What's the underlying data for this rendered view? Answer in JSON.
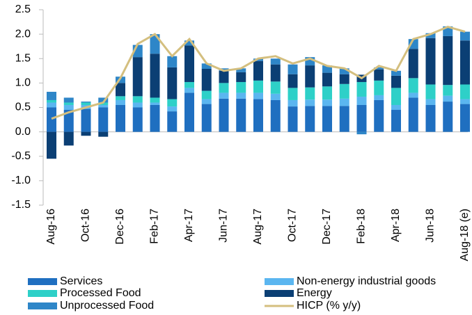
{
  "chart_data": {
    "type": "bar",
    "stacked": true,
    "categories": [
      "Aug-16",
      null,
      "Oct-16",
      null,
      "Dec-16",
      null,
      "Feb-17",
      null,
      "Apr-17",
      null,
      "Jun-17",
      null,
      "Aug-17",
      null,
      "Oct-17",
      null,
      "Dec-17",
      null,
      "Feb-18",
      null,
      "Apr-18",
      null,
      "Jun-18",
      null,
      "Aug-18 (e)"
    ],
    "series": [
      {
        "name": "Services",
        "color": "#1f6fc0",
        "values": [
          0.5,
          0.45,
          0.47,
          0.5,
          0.55,
          0.5,
          0.55,
          0.42,
          0.8,
          0.57,
          0.68,
          0.68,
          0.67,
          0.65,
          0.52,
          0.53,
          0.53,
          0.53,
          0.55,
          0.65,
          0.45,
          0.7,
          0.55,
          0.62,
          0.57
        ]
      },
      {
        "name": "Non-energy industrial goods",
        "color": "#5bb6f0",
        "values": [
          0.1,
          0.1,
          0.08,
          0.05,
          0.1,
          0.1,
          0.05,
          0.1,
          0.1,
          0.1,
          0.12,
          0.12,
          0.13,
          0.13,
          0.13,
          0.13,
          0.13,
          0.15,
          0.17,
          0.1,
          0.1,
          0.1,
          0.12,
          0.12,
          0.1
        ]
      },
      {
        "name": "Processed Food",
        "color": "#2ed0c8",
        "values": [
          0.05,
          0.05,
          0.05,
          0.05,
          0.08,
          0.13,
          0.1,
          0.15,
          0.12,
          0.17,
          0.2,
          0.22,
          0.25,
          0.25,
          0.25,
          0.25,
          0.27,
          0.3,
          0.3,
          0.3,
          0.35,
          0.3,
          0.3,
          0.22,
          0.3
        ]
      },
      {
        "name": "Energy",
        "color": "#0b3f74",
        "values": [
          -0.55,
          -0.28,
          -0.08,
          -0.1,
          0.27,
          0.8,
          0.9,
          0.65,
          0.75,
          0.45,
          0.25,
          0.2,
          0.4,
          0.35,
          0.28,
          0.45,
          0.28,
          0.2,
          0.15,
          0.23,
          0.25,
          0.6,
          0.95,
          1.0,
          0.9
        ]
      },
      {
        "name": "Unprocessed Food",
        "color": "#2e86c8",
        "values": [
          0.17,
          0.1,
          0.02,
          0.1,
          0.13,
          0.25,
          0.4,
          0.23,
          0.1,
          0.11,
          0.05,
          0.08,
          0.05,
          0.12,
          0.2,
          0.17,
          0.15,
          0.12,
          -0.05,
          0.04,
          0.1,
          0.2,
          0.1,
          0.2,
          0.18
        ]
      },
      {
        "name": "HICP (% y/y)",
        "type": "line",
        "color": "#d4bf7f",
        "values": [
          0.27,
          0.4,
          0.5,
          0.6,
          1.1,
          1.8,
          2.0,
          1.55,
          1.9,
          1.4,
          1.25,
          1.3,
          1.5,
          1.55,
          1.4,
          1.5,
          1.35,
          1.3,
          1.1,
          1.35,
          1.25,
          1.9,
          2.0,
          2.15,
          2.05
        ]
      }
    ],
    "ylim": [
      -1.5,
      2.5
    ],
    "yticks": [
      {
        "value": -1.5,
        "label": "-1.5"
      },
      {
        "value": -1,
        "label": "-1.0"
      },
      -0.5,
      {
        "value": 0,
        "label": "0.0"
      },
      0.5,
      {
        "value": 1,
        "label": "1.0"
      },
      1.5,
      {
        "value": 2,
        "label": "2.0"
      },
      2.5
    ]
  }
}
